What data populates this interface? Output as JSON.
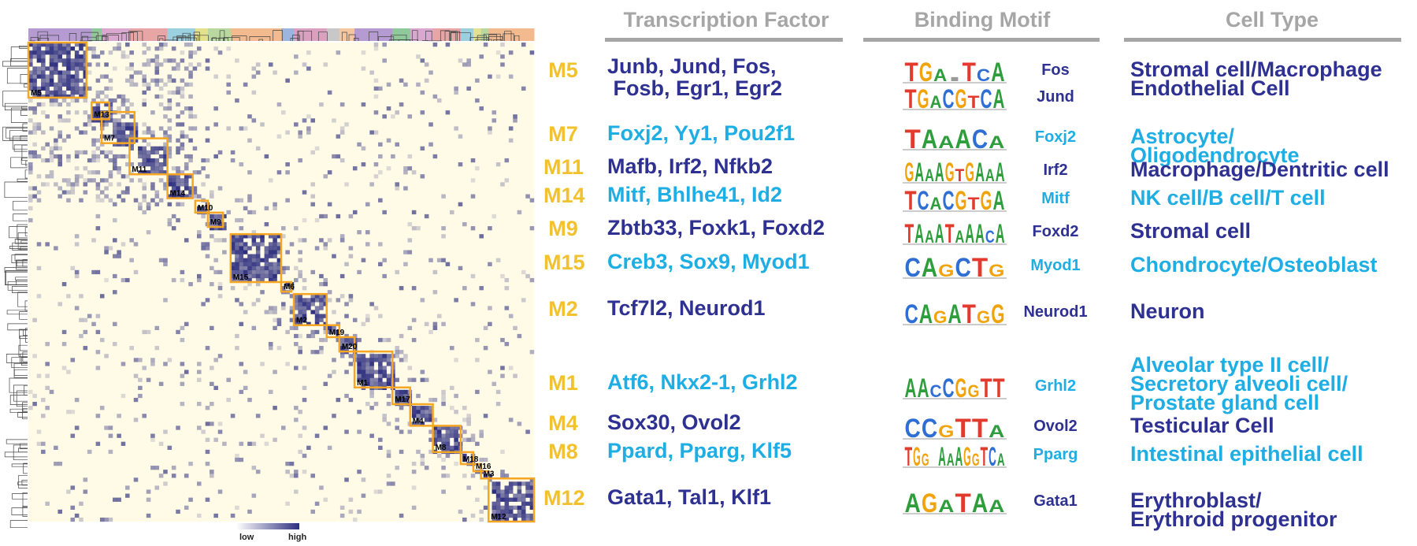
{
  "headers": {
    "tf": "Transcription Factor",
    "motif": "Binding Motif",
    "cell": "Cell Type"
  },
  "colors": {
    "module_label": "#f2c12e",
    "dark_text": "#2e3192",
    "light_text": "#1eaee4",
    "heatmap_low": "#fffbe6",
    "heatmap_high": "#2e2f7f",
    "module_box": "#f5a623",
    "header_gray": "#a6a6a6"
  },
  "heatmap_modules": [
    "M5",
    "M13",
    "M7",
    "M11",
    "M14",
    "M10",
    "M9",
    "M15",
    "M6",
    "M2",
    "M19",
    "M20",
    "M1",
    "M17",
    "M4",
    "M8",
    "M18",
    "M16",
    "M3",
    "M12"
  ],
  "scale": {
    "low": "low",
    "high": "high"
  },
  "rows": [
    {
      "module": "M5",
      "tf": [
        "Junb, Jund, Fos,",
        " Fosb, Egr1, Egr2"
      ],
      "motifs": [
        "Fos",
        "Jund"
      ],
      "motif_logos": [
        "TGA.TCA",
        "TGACGTCA"
      ],
      "cell": [
        "Stromal cell/Macrophage",
        "Endothelial Cell"
      ],
      "tone": "dark"
    },
    {
      "module": "M7",
      "tf": [
        "Foxj2, Yy1, Pou2f1"
      ],
      "motifs": [
        "Foxj2"
      ],
      "motif_logos": [
        "TAAACA"
      ],
      "cell": [
        "Astrocyte/",
        "Oligodendrocyte"
      ],
      "tone": "light"
    },
    {
      "module": "M11",
      "tf": [
        "Mafb, Irf2, Nfkb2"
      ],
      "motifs": [
        "Irf2"
      ],
      "motif_logos": [
        "GAAAGTGAAA"
      ],
      "cell": [
        "Macrophage/Dentritic cell"
      ],
      "tone": "dark"
    },
    {
      "module": "M14",
      "tf": [
        "Mitf, Bhlhe41, Id2"
      ],
      "motifs": [
        "Mitf"
      ],
      "motif_logos": [
        "TCACGTGA"
      ],
      "cell": [
        "NK cell/B cell/T cell"
      ],
      "tone": "light"
    },
    {
      "module": "M9",
      "tf": [
        "Zbtb33, Foxk1, Foxd2"
      ],
      "motifs": [
        "Foxd2"
      ],
      "motif_logos": [
        "TAAATAAACA"
      ],
      "cell": [
        "Stromal cell"
      ],
      "tone": "dark"
    },
    {
      "module": "M15",
      "tf": [
        "Creb3, Sox9, Myod1"
      ],
      "motifs": [
        "Myod1"
      ],
      "motif_logos": [
        "CAGCTG"
      ],
      "cell": [
        "Chondrocyte/Osteoblast"
      ],
      "tone": "light"
    },
    {
      "module": "M2",
      "tf": [
        "Tcf7l2, Neurod1"
      ],
      "motifs": [
        "Neurod1"
      ],
      "motif_logos": [
        "CAGATGG"
      ],
      "cell": [
        "Neuron"
      ],
      "tone": "dark"
    },
    {
      "module": "M1",
      "tf": [
        "Atf6, Nkx2-1, Grhl2"
      ],
      "motifs": [
        "Grhl2"
      ],
      "motif_logos": [
        "AACCGGTT"
      ],
      "cell": [
        "Alveolar type II cell/",
        "Secretory alveoli cell/",
        "Prostate gland cell"
      ],
      "tone": "light"
    },
    {
      "module": "M4",
      "tf": [
        "Sox30, Ovol2"
      ],
      "motifs": [
        "Ovol2"
      ],
      "motif_logos": [
        "CCGTTA"
      ],
      "cell": [
        "Testicular Cell"
      ],
      "tone": "dark"
    },
    {
      "module": "M8",
      "tf": [
        "Ppard, Pparg, Klf5"
      ],
      "motifs": [
        "Pparg"
      ],
      "motif_logos": [
        "TGG AAAGGTCA"
      ],
      "cell": [
        "Intestinal epithelial cell"
      ],
      "tone": "light"
    },
    {
      "module": "M12",
      "tf": [
        "Gata1, Tal1, Klf1"
      ],
      "motifs": [
        "Gata1"
      ],
      "motif_logos": [
        "AGATAA"
      ],
      "cell": [
        "Erythroblast/",
        "Erythroid progenitor"
      ],
      "tone": "dark"
    }
  ]
}
